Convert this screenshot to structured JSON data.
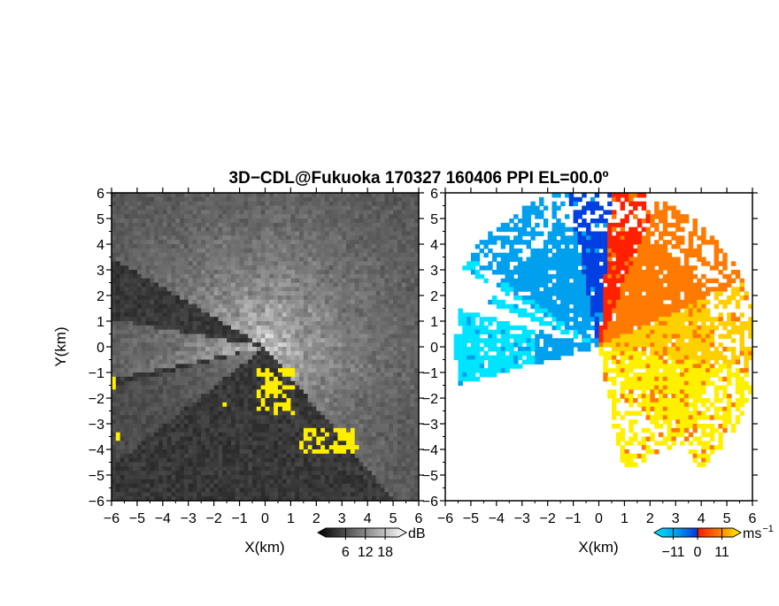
{
  "title": "3D−CDL@Fukuoka 170327 160406 PPI EL=00.0º",
  "chart_data": [
    {
      "type": "heatmap",
      "panel": "reflectivity",
      "xlabel": "X(km)",
      "ylabel": "Y(km)",
      "xlim": [
        -6,
        6
      ],
      "ylim": [
        -6,
        6
      ],
      "xticks": [
        "−6",
        "−5",
        "−4",
        "−3",
        "−2",
        "−1",
        "0",
        "1",
        "2",
        "3",
        "4",
        "5",
        "6"
      ],
      "yticks": [
        "−6",
        "−5",
        "−4",
        "−3",
        "−2",
        "−1",
        "0",
        "1",
        "2",
        "3",
        "4",
        "5",
        "6"
      ],
      "colorbar": {
        "unit": "dB",
        "ticks": [
          "6",
          "12",
          "18"
        ],
        "tick_values": [
          6,
          12,
          18
        ],
        "range": [
          0,
          22
        ],
        "colors": {
          "low": "#000000",
          "high": "#ffffff",
          "flag": "#ffee00"
        }
      },
      "yellow_regions": [
        {
          "x": [
            -6.0,
            -5.8
          ],
          "y": [
            -1.6,
            -1.0
          ]
        },
        {
          "x": [
            -6.0,
            -5.6
          ],
          "y": [
            -3.6,
            -3.2
          ]
        },
        {
          "x": [
            -0.4,
            1.2
          ],
          "y": [
            -2.6,
            -0.8
          ]
        },
        {
          "x": [
            1.4,
            3.6
          ],
          "y": [
            -4.2,
            -3.2
          ]
        },
        {
          "x": [
            -1.7,
            -1.5
          ],
          "y": [
            -2.5,
            -2.2
          ]
        }
      ]
    },
    {
      "type": "heatmap",
      "panel": "doppler-velocity",
      "xlabel": "X(km)",
      "ylabel": "",
      "xlim": [
        -6,
        6
      ],
      "ylim": [
        -6,
        6
      ],
      "xticks": [
        "−6",
        "−5",
        "−4",
        "−3",
        "−2",
        "−1",
        "0",
        "1",
        "2",
        "3",
        "4",
        "5",
        "6"
      ],
      "yticks": [
        "−6",
        "−5",
        "−4",
        "−3",
        "−2",
        "−1",
        "0",
        "1",
        "2",
        "3",
        "4",
        "5",
        "6"
      ],
      "colorbar": {
        "unit": "ms",
        "unit_exp": "−1",
        "ticks": [
          "−11",
          "0",
          "11"
        ],
        "tick_values": [
          -11,
          0,
          11
        ],
        "range": [
          -16,
          16
        ],
        "colors": [
          "#00e5ff",
          "#00a0ee",
          "#0040e0",
          "#ff2000",
          "#ff7a00",
          "#ffd000",
          "#fff000"
        ]
      }
    }
  ]
}
